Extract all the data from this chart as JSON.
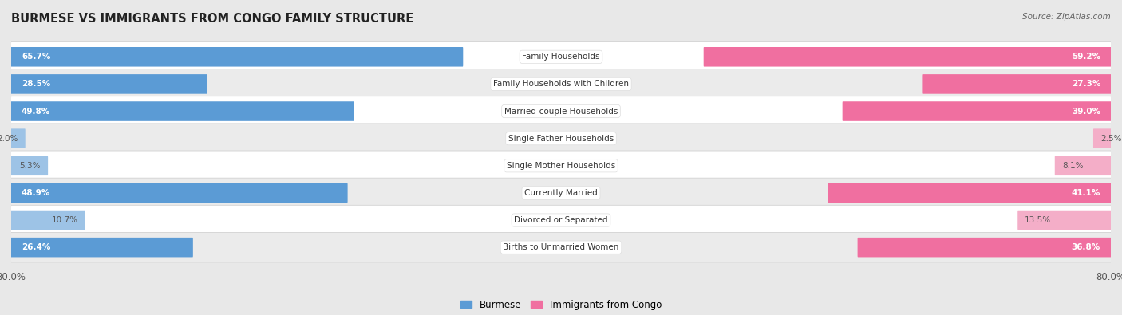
{
  "title": "BURMESE VS IMMIGRANTS FROM CONGO FAMILY STRUCTURE",
  "source": "Source: ZipAtlas.com",
  "categories": [
    "Family Households",
    "Family Households with Children",
    "Married-couple Households",
    "Single Father Households",
    "Single Mother Households",
    "Currently Married",
    "Divorced or Separated",
    "Births to Unmarried Women"
  ],
  "burmese_values": [
    65.7,
    28.5,
    49.8,
    2.0,
    5.3,
    48.9,
    10.7,
    26.4
  ],
  "congo_values": [
    59.2,
    27.3,
    39.0,
    2.5,
    8.1,
    41.1,
    13.5,
    36.8
  ],
  "burmese_color_strong": "#5b9bd5",
  "burmese_color_light": "#9dc3e6",
  "congo_color_strong": "#f06fa0",
  "congo_color_light": "#f4aec8",
  "burmese_label": "Burmese",
  "congo_label": "Immigrants from Congo",
  "xlim": 80.0,
  "bg_color": "#e8e8e8",
  "row_bg_even": "#ffffff",
  "row_bg_odd": "#ebebeb",
  "bar_height": 0.62,
  "label_fontsize": 7.5,
  "value_fontsize": 7.5,
  "title_fontsize": 10.5,
  "large_threshold": 15
}
